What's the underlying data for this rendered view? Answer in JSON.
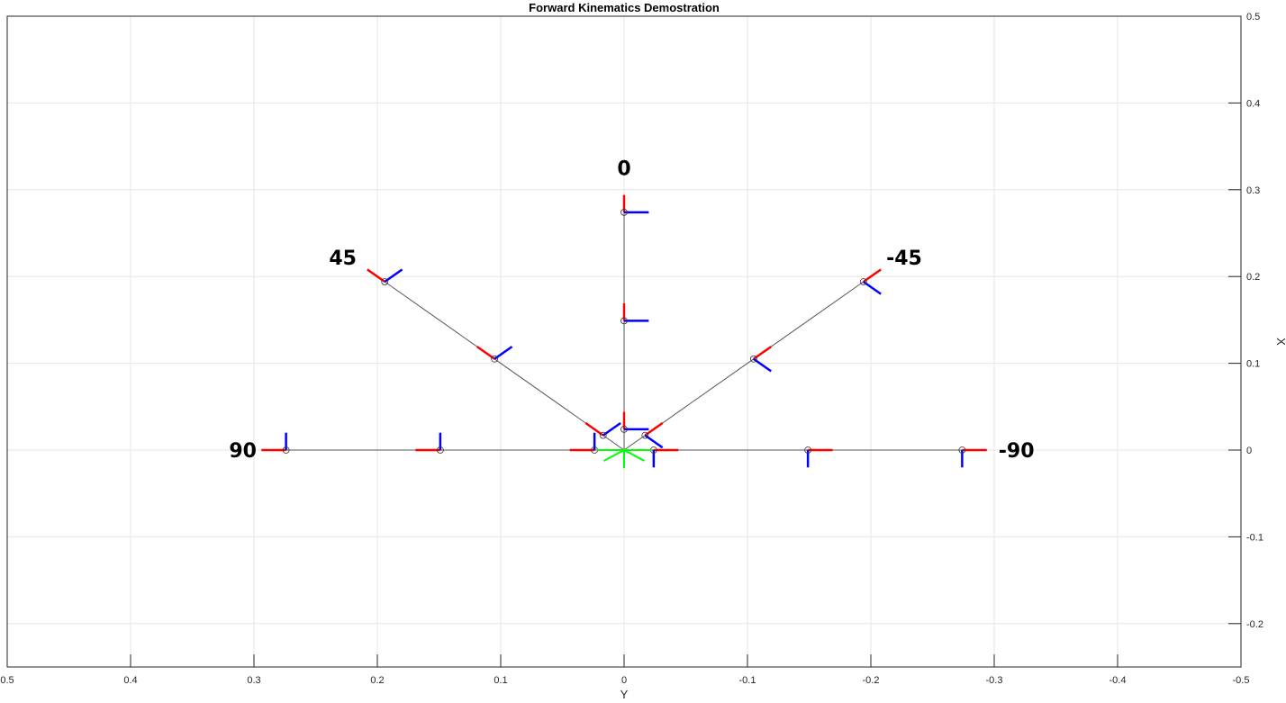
{
  "chart_data": {
    "type": "line",
    "title": "Forward Kinematics Demostration",
    "xlabel": "Y",
    "ylabel": "X",
    "xlim": [
      0.5,
      -0.5
    ],
    "ylim": [
      -0.25,
      0.5
    ],
    "x_reversed": true,
    "y_axis_side": "right",
    "grid": true,
    "xticks": [
      0.5,
      0.4,
      0.3,
      0.2,
      0.1,
      0,
      -0.1,
      -0.2,
      -0.3,
      -0.4,
      -0.5
    ],
    "yticks": [
      -0.2,
      -0.1,
      0,
      0.1,
      0.2,
      0.3,
      0.4,
      0.5
    ],
    "xtick_labels": [
      "0.5",
      "0.4",
      "0.3",
      "0.2",
      "0.1",
      "0",
      "-0.1",
      "-0.2",
      "-0.3",
      "-0.4",
      "-0.5"
    ],
    "ytick_labels": [
      "-0.2",
      "-0.1",
      "0",
      "0.1",
      "0.2",
      "0.3",
      "0.4",
      "0.5"
    ],
    "colors": {
      "link": "#555555",
      "frame_x": "#ff0000",
      "frame_y": "#0000ff",
      "base": "#00ff00",
      "grid": "#e6e6e6",
      "axis": "#262626"
    },
    "frame_axis_length": 0.02,
    "base_origin": {
      "y": 0,
      "x": 0
    },
    "series": [
      {
        "angle_deg": 0,
        "label": "0",
        "joints": [
          {
            "y": 0,
            "x": 0
          },
          {
            "y": 0,
            "x": 0.024
          },
          {
            "y": 0,
            "x": 0.149
          },
          {
            "y": 0,
            "x": 0.274
          }
        ],
        "label_pos": {
          "y": 0,
          "x": 0.325
        }
      },
      {
        "angle_deg": 45,
        "label": "45",
        "joints": [
          {
            "y": 0,
            "x": 0
          },
          {
            "y": 0.017,
            "x": 0.017
          },
          {
            "y": 0.105,
            "x": 0.105
          },
          {
            "y": 0.194,
            "x": 0.194
          }
        ],
        "label_pos": {
          "y": 0.228,
          "x": 0.222
        }
      },
      {
        "angle_deg": -45,
        "label": "-45",
        "joints": [
          {
            "y": 0,
            "x": 0
          },
          {
            "y": -0.017,
            "x": 0.017
          },
          {
            "y": -0.105,
            "x": 0.105
          },
          {
            "y": -0.194,
            "x": 0.194
          }
        ],
        "label_pos": {
          "y": -0.227,
          "x": 0.222
        }
      },
      {
        "angle_deg": 90,
        "label": "90",
        "joints": [
          {
            "y": 0,
            "x": 0
          },
          {
            "y": 0.024,
            "x": 0
          },
          {
            "y": 0.149,
            "x": 0
          },
          {
            "y": 0.274,
            "x": 0
          }
        ],
        "label_pos": {
          "y": 0.309,
          "x": 0
        }
      },
      {
        "angle_deg": -90,
        "label": "-90",
        "joints": [
          {
            "y": 0,
            "x": 0
          },
          {
            "y": -0.024,
            "x": 0
          },
          {
            "y": -0.149,
            "x": 0
          },
          {
            "y": -0.274,
            "x": 0
          }
        ],
        "label_pos": {
          "y": -0.318,
          "x": 0
        }
      }
    ]
  }
}
